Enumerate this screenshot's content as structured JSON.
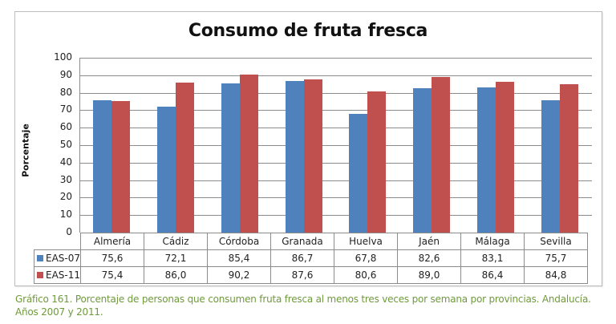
{
  "chart_data": {
    "type": "bar",
    "title": "Consumo de fruta fresca",
    "xlabel": "",
    "ylabel": "Porcentaje",
    "ylim": [
      0,
      100
    ],
    "yticks": [
      0,
      10,
      20,
      30,
      40,
      50,
      60,
      70,
      80,
      90,
      100
    ],
    "grid": true,
    "legend_position": "data-table",
    "categories": [
      "Almería",
      "Cádiz",
      "Córdoba",
      "Granada",
      "Huelva",
      "Jaén",
      "Málaga",
      "Sevilla"
    ],
    "series": [
      {
        "name": "EAS-07",
        "color": "#4f81bd",
        "values": [
          75.6,
          72.1,
          85.4,
          86.7,
          67.8,
          82.6,
          83.1,
          75.7
        ],
        "labels": [
          "75,6",
          "72,1",
          "85,4",
          "86,7",
          "67,8",
          "82,6",
          "83,1",
          "75,7"
        ]
      },
      {
        "name": "EAS-11",
        "color": "#c0504d",
        "values": [
          75.4,
          86.0,
          90.2,
          87.6,
          80.6,
          89.0,
          86.4,
          84.8
        ],
        "labels": [
          "75,4",
          "86,0",
          "90,2",
          "87,6",
          "80,6",
          "89,0",
          "86,4",
          "84,8"
        ]
      }
    ]
  },
  "caption": {
    "line1": "Gráfico 161. Porcentaje de personas que consumen fruta fresca al menos tres veces por semana por provincias. Andalucía.",
    "line2": "Años 2007 y 2011."
  }
}
